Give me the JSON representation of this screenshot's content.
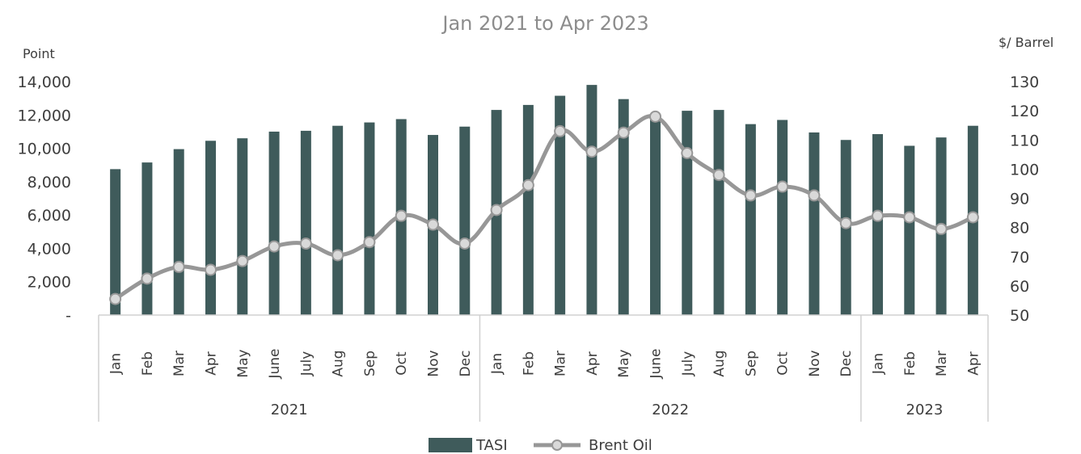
{
  "chart_data": {
    "type": "bar",
    "title": "Jan 2021 to Apr 2023",
    "ylabel_left": "Point",
    "ylabel_right": "$/ Barrel",
    "ylim_left": [
      0,
      14000
    ],
    "ylim_right": [
      50,
      130
    ],
    "yticks_left": [
      "-",
      "2,000",
      "4,000",
      "6,000",
      "8,000",
      "10,000",
      "12,000",
      "14,000"
    ],
    "yticks_right": [
      "50",
      "60",
      "70",
      "80",
      "90",
      "100",
      "110",
      "120",
      "130"
    ],
    "categories": [
      "Jan",
      "Feb",
      "Mar",
      "Apr",
      "May",
      "June",
      "July",
      "Aug",
      "Sep",
      "Oct",
      "Nov",
      "Dec",
      "Jan",
      "Feb",
      "Mar",
      "Apr",
      "May",
      "June",
      "July",
      "Aug",
      "Sep",
      "Oct",
      "Nov",
      "Dec",
      "Jan",
      "Feb",
      "Mar",
      "Apr"
    ],
    "year_groups": [
      {
        "label": "2021",
        "count": 12
      },
      {
        "label": "2022",
        "count": 12
      },
      {
        "label": "2023",
        "count": 4
      }
    ],
    "series": [
      {
        "name": "TASI",
        "type": "bar",
        "axis": "left",
        "color": "#3f5b5b",
        "values": [
          8750,
          9150,
          9950,
          10450,
          10600,
          11000,
          11050,
          11350,
          11550,
          11750,
          10800,
          11300,
          12300,
          12600,
          13150,
          13800,
          12950,
          11850,
          12250,
          12300,
          11450,
          11700,
          10950,
          10500,
          10850,
          10150,
          10650,
          11350
        ]
      },
      {
        "name": "Brent Oil",
        "type": "line",
        "axis": "right",
        "color": "#979797",
        "marker_fill": "#d9d9d9",
        "values": [
          55.5,
          62.5,
          66.5,
          65.5,
          68.5,
          73.5,
          74.5,
          70.5,
          75,
          84,
          81,
          74.5,
          86,
          94.5,
          113,
          106,
          112.5,
          118,
          105.5,
          98,
          91,
          94,
          91,
          81.5,
          84,
          83.5,
          79.5,
          83.5
        ]
      }
    ],
    "legend_position": "bottom",
    "grid": false
  }
}
